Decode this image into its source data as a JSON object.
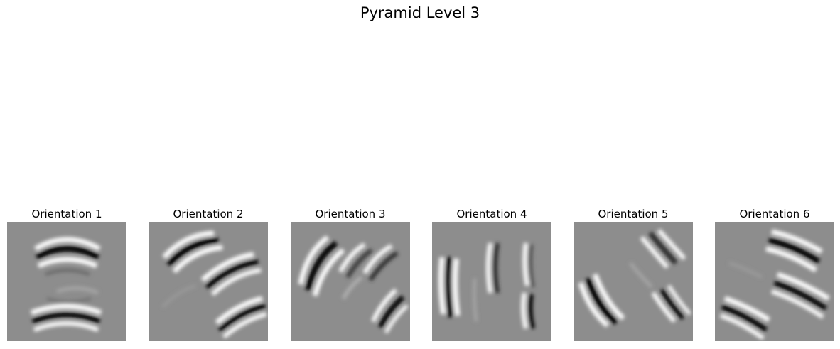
{
  "figure": {
    "title": "Pyramid Level 3",
    "panels": [
      {
        "title": "Orientation 1",
        "angle": 0
      },
      {
        "title": "Orientation 2",
        "angle": 30
      },
      {
        "title": "Orientation 3",
        "angle": 60
      },
      {
        "title": "Orientation 4",
        "angle": 90
      },
      {
        "title": "Orientation 5",
        "angle": 120
      },
      {
        "title": "Orientation 6",
        "angle": 150
      }
    ],
    "colors": {
      "background": "#8d8d8d",
      "light": "#ffffff",
      "dark": "#000000"
    }
  }
}
